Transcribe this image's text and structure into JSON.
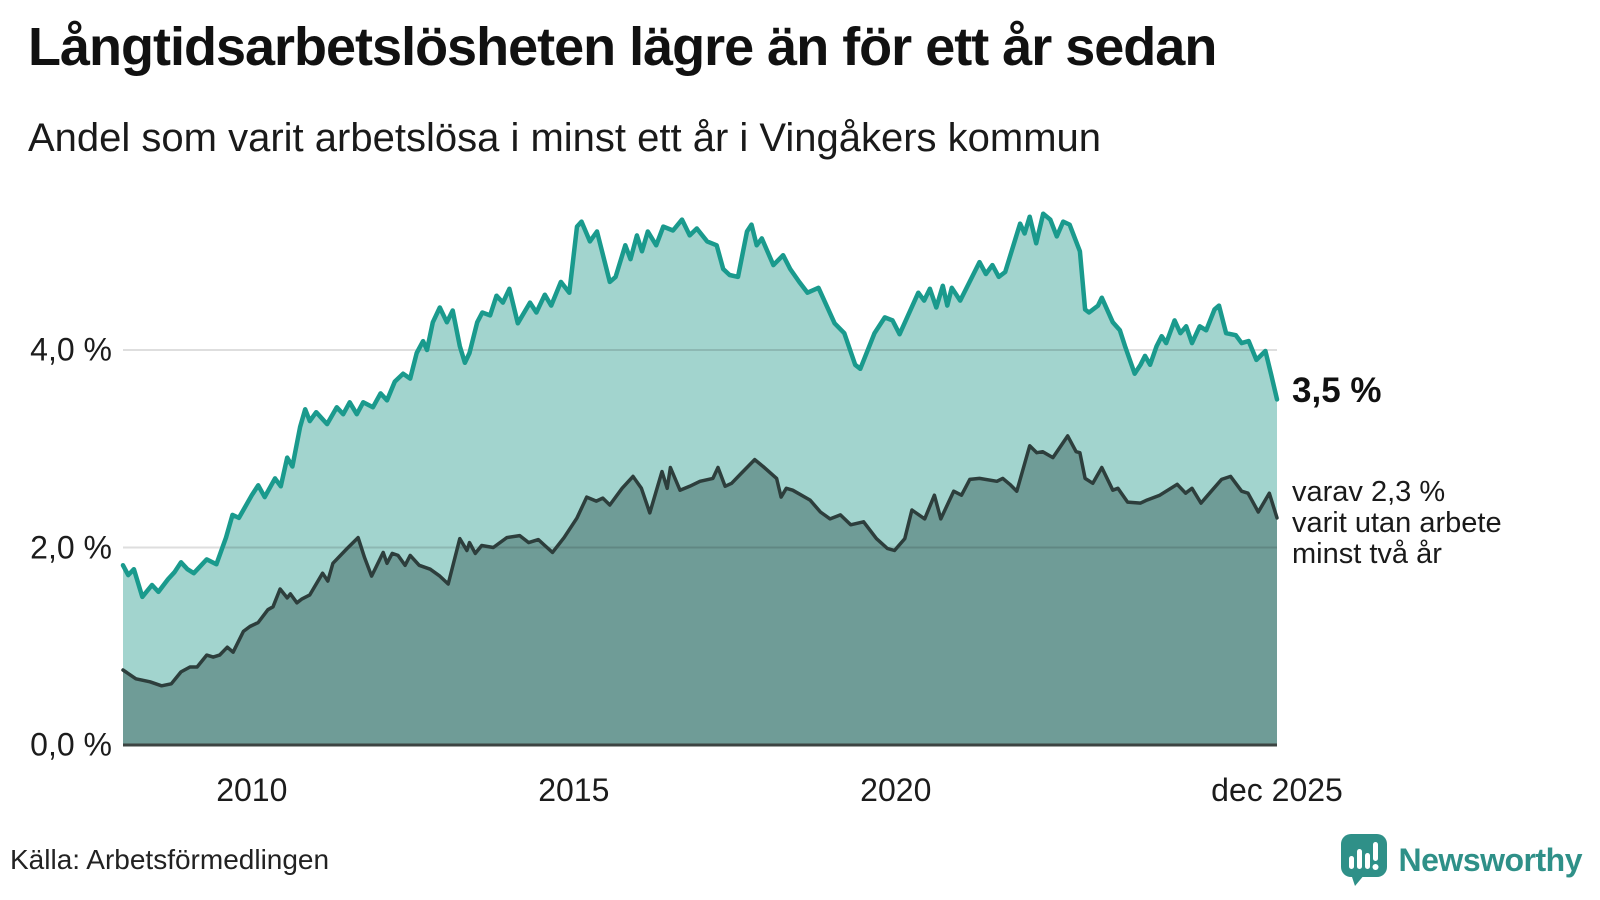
{
  "header": {
    "title": "Långtidsarbetslösheten lägre än för ett år sedan",
    "subtitle": "Andel som varit arbetslösa i minst ett år i Vingåkers kommun"
  },
  "annotations": {
    "latest_total": "3,5 %",
    "sub_lines": [
      "varav 2,3 %",
      "varit utan arbete",
      "minst två år"
    ]
  },
  "source": {
    "label": "Källa: Arbetsförmedlingen"
  },
  "branding": {
    "name": "Newsworthy",
    "icon": "newsworthy-speech-bubble-chart-icon",
    "color": "#2f9088"
  },
  "colors": {
    "series1_line": "#1a9a8d",
    "series1_fill": "#a2d4ce",
    "series2_line": "#2d3e3c",
    "series2_fill": "#6f9c97",
    "grid": "rgba(0,0,0,0.13)",
    "baseline": "#3c4442",
    "text": "#1a1a1a"
  },
  "chart_data": {
    "type": "area",
    "title": "Långtidsarbetslösheten lägre än för ett år sedan",
    "subtitle": "Andel som varit arbetslösa i minst ett år i Vingåkers kommun",
    "unit": "%",
    "grid": true,
    "legend_position": "right-annotations",
    "x_axis": {
      "range": [
        2008.0,
        2025.92
      ],
      "ticks": [
        {
          "value": 2010,
          "label": "2010"
        },
        {
          "value": 2015,
          "label": "2015"
        },
        {
          "value": 2020,
          "label": "2020"
        },
        {
          "value": 2025.92,
          "label": "dec 2025"
        }
      ]
    },
    "y_axis": {
      "range": [
        0,
        5.7
      ],
      "ticks": [
        {
          "value": 0,
          "label": "0,0 %"
        },
        {
          "value": 2,
          "label": "2,0 %"
        },
        {
          "value": 4,
          "label": "4,0 %"
        }
      ]
    },
    "series": [
      {
        "name": "arbetslösa minst ett år",
        "end_value": 3.5,
        "end_label": "3,5 %",
        "points": [
          [
            2008.0,
            1.82
          ],
          [
            2008.08,
            1.72
          ],
          [
            2008.17,
            1.78
          ],
          [
            2008.3,
            1.5
          ],
          [
            2008.45,
            1.62
          ],
          [
            2008.55,
            1.55
          ],
          [
            2008.7,
            1.68
          ],
          [
            2008.8,
            1.75
          ],
          [
            2008.9,
            1.85
          ],
          [
            2009.0,
            1.78
          ],
          [
            2009.1,
            1.74
          ],
          [
            2009.3,
            1.88
          ],
          [
            2009.45,
            1.83
          ],
          [
            2009.6,
            2.1
          ],
          [
            2009.7,
            2.33
          ],
          [
            2009.8,
            2.3
          ],
          [
            2010.0,
            2.53
          ],
          [
            2010.1,
            2.63
          ],
          [
            2010.2,
            2.51
          ],
          [
            2010.36,
            2.7
          ],
          [
            2010.45,
            2.62
          ],
          [
            2010.55,
            2.91
          ],
          [
            2010.63,
            2.82
          ],
          [
            2010.75,
            3.22
          ],
          [
            2010.83,
            3.4
          ],
          [
            2010.9,
            3.28
          ],
          [
            2011.0,
            3.37
          ],
          [
            2011.17,
            3.25
          ],
          [
            2011.32,
            3.42
          ],
          [
            2011.42,
            3.35
          ],
          [
            2011.52,
            3.47
          ],
          [
            2011.63,
            3.35
          ],
          [
            2011.73,
            3.47
          ],
          [
            2011.88,
            3.42
          ],
          [
            2012.0,
            3.56
          ],
          [
            2012.1,
            3.49
          ],
          [
            2012.22,
            3.68
          ],
          [
            2012.35,
            3.76
          ],
          [
            2012.46,
            3.71
          ],
          [
            2012.56,
            3.97
          ],
          [
            2012.66,
            4.09
          ],
          [
            2012.72,
            4.0
          ],
          [
            2012.81,
            4.28
          ],
          [
            2012.92,
            4.43
          ],
          [
            2013.03,
            4.28
          ],
          [
            2013.12,
            4.4
          ],
          [
            2013.23,
            4.04
          ],
          [
            2013.31,
            3.87
          ],
          [
            2013.38,
            3.97
          ],
          [
            2013.5,
            4.28
          ],
          [
            2013.58,
            4.38
          ],
          [
            2013.7,
            4.35
          ],
          [
            2013.8,
            4.55
          ],
          [
            2013.9,
            4.48
          ],
          [
            2014.0,
            4.62
          ],
          [
            2014.13,
            4.27
          ],
          [
            2014.32,
            4.48
          ],
          [
            2014.42,
            4.38
          ],
          [
            2014.55,
            4.56
          ],
          [
            2014.65,
            4.45
          ],
          [
            2014.8,
            4.69
          ],
          [
            2014.93,
            4.58
          ],
          [
            2015.05,
            5.25
          ],
          [
            2015.12,
            5.3
          ],
          [
            2015.25,
            5.1
          ],
          [
            2015.36,
            5.2
          ],
          [
            2015.56,
            4.69
          ],
          [
            2015.65,
            4.74
          ],
          [
            2015.8,
            5.06
          ],
          [
            2015.88,
            4.92
          ],
          [
            2015.98,
            5.16
          ],
          [
            2016.06,
            5.0
          ],
          [
            2016.15,
            5.2
          ],
          [
            2016.28,
            5.06
          ],
          [
            2016.39,
            5.25
          ],
          [
            2016.54,
            5.21
          ],
          [
            2016.68,
            5.32
          ],
          [
            2016.8,
            5.16
          ],
          [
            2016.91,
            5.23
          ],
          [
            2017.07,
            5.1
          ],
          [
            2017.22,
            5.06
          ],
          [
            2017.32,
            4.82
          ],
          [
            2017.42,
            4.76
          ],
          [
            2017.55,
            4.74
          ],
          [
            2017.69,
            5.2
          ],
          [
            2017.76,
            5.27
          ],
          [
            2017.84,
            5.06
          ],
          [
            2017.92,
            5.13
          ],
          [
            2018.1,
            4.86
          ],
          [
            2018.25,
            4.96
          ],
          [
            2018.36,
            4.82
          ],
          [
            2018.5,
            4.69
          ],
          [
            2018.63,
            4.58
          ],
          [
            2018.8,
            4.63
          ],
          [
            2019.05,
            4.27
          ],
          [
            2019.2,
            4.17
          ],
          [
            2019.37,
            3.85
          ],
          [
            2019.45,
            3.81
          ],
          [
            2019.67,
            4.17
          ],
          [
            2019.83,
            4.33
          ],
          [
            2019.95,
            4.3
          ],
          [
            2020.06,
            4.16
          ],
          [
            2020.35,
            4.58
          ],
          [
            2020.44,
            4.5
          ],
          [
            2020.53,
            4.62
          ],
          [
            2020.63,
            4.43
          ],
          [
            2020.73,
            4.65
          ],
          [
            2020.8,
            4.45
          ],
          [
            2020.87,
            4.63
          ],
          [
            2021.0,
            4.5
          ],
          [
            2021.3,
            4.89
          ],
          [
            2021.4,
            4.77
          ],
          [
            2021.5,
            4.86
          ],
          [
            2021.6,
            4.74
          ],
          [
            2021.7,
            4.79
          ],
          [
            2021.93,
            5.28
          ],
          [
            2022.0,
            5.18
          ],
          [
            2022.08,
            5.35
          ],
          [
            2022.18,
            5.08
          ],
          [
            2022.29,
            5.38
          ],
          [
            2022.4,
            5.32
          ],
          [
            2022.5,
            5.15
          ],
          [
            2022.6,
            5.3
          ],
          [
            2022.7,
            5.27
          ],
          [
            2022.86,
            5.0
          ],
          [
            2022.94,
            4.41
          ],
          [
            2023.0,
            4.38
          ],
          [
            2023.14,
            4.45
          ],
          [
            2023.2,
            4.53
          ],
          [
            2023.37,
            4.28
          ],
          [
            2023.48,
            4.2
          ],
          [
            2023.56,
            4.04
          ],
          [
            2023.71,
            3.76
          ],
          [
            2023.8,
            3.85
          ],
          [
            2023.87,
            3.94
          ],
          [
            2023.95,
            3.85
          ],
          [
            2024.05,
            4.04
          ],
          [
            2024.13,
            4.14
          ],
          [
            2024.2,
            4.07
          ],
          [
            2024.33,
            4.3
          ],
          [
            2024.42,
            4.17
          ],
          [
            2024.51,
            4.24
          ],
          [
            2024.6,
            4.07
          ],
          [
            2024.72,
            4.24
          ],
          [
            2024.82,
            4.2
          ],
          [
            2024.95,
            4.41
          ],
          [
            2025.02,
            4.45
          ],
          [
            2025.13,
            4.17
          ],
          [
            2025.28,
            4.15
          ],
          [
            2025.37,
            4.07
          ],
          [
            2025.48,
            4.09
          ],
          [
            2025.6,
            3.9
          ],
          [
            2025.74,
            3.99
          ],
          [
            2025.83,
            3.75
          ],
          [
            2025.92,
            3.5
          ]
        ]
      },
      {
        "name": "varit utan arbete minst två år",
        "end_value": 2.3,
        "end_label": "2,3 %",
        "points": [
          [
            2008.0,
            0.76
          ],
          [
            2008.2,
            0.67
          ],
          [
            2008.42,
            0.64
          ],
          [
            2008.6,
            0.6
          ],
          [
            2008.75,
            0.62
          ],
          [
            2008.9,
            0.74
          ],
          [
            2009.04,
            0.79
          ],
          [
            2009.15,
            0.79
          ],
          [
            2009.3,
            0.91
          ],
          [
            2009.4,
            0.89
          ],
          [
            2009.5,
            0.91
          ],
          [
            2009.62,
            0.99
          ],
          [
            2009.71,
            0.94
          ],
          [
            2009.87,
            1.15
          ],
          [
            2009.97,
            1.2
          ],
          [
            2010.1,
            1.24
          ],
          [
            2010.25,
            1.37
          ],
          [
            2010.33,
            1.4
          ],
          [
            2010.44,
            1.58
          ],
          [
            2010.55,
            1.49
          ],
          [
            2010.6,
            1.53
          ],
          [
            2010.7,
            1.44
          ],
          [
            2010.78,
            1.48
          ],
          [
            2010.9,
            1.52
          ],
          [
            2011.1,
            1.74
          ],
          [
            2011.18,
            1.66
          ],
          [
            2011.26,
            1.84
          ],
          [
            2011.48,
            1.99
          ],
          [
            2011.65,
            2.1
          ],
          [
            2011.75,
            1.9
          ],
          [
            2011.86,
            1.71
          ],
          [
            2012.04,
            1.95
          ],
          [
            2012.1,
            1.84
          ],
          [
            2012.18,
            1.94
          ],
          [
            2012.27,
            1.92
          ],
          [
            2012.38,
            1.82
          ],
          [
            2012.46,
            1.92
          ],
          [
            2012.6,
            1.82
          ],
          [
            2012.77,
            1.78
          ],
          [
            2012.92,
            1.71
          ],
          [
            2013.05,
            1.63
          ],
          [
            2013.23,
            2.09
          ],
          [
            2013.34,
            1.97
          ],
          [
            2013.38,
            2.05
          ],
          [
            2013.47,
            1.94
          ],
          [
            2013.57,
            2.02
          ],
          [
            2013.75,
            2.0
          ],
          [
            2013.96,
            2.1
          ],
          [
            2014.16,
            2.12
          ],
          [
            2014.3,
            2.05
          ],
          [
            2014.45,
            2.08
          ],
          [
            2014.55,
            2.02
          ],
          [
            2014.67,
            1.95
          ],
          [
            2014.85,
            2.1
          ],
          [
            2015.05,
            2.3
          ],
          [
            2015.2,
            2.51
          ],
          [
            2015.35,
            2.47
          ],
          [
            2015.45,
            2.5
          ],
          [
            2015.56,
            2.43
          ],
          [
            2015.75,
            2.6
          ],
          [
            2015.92,
            2.72
          ],
          [
            2016.05,
            2.6
          ],
          [
            2016.18,
            2.35
          ],
          [
            2016.37,
            2.77
          ],
          [
            2016.45,
            2.6
          ],
          [
            2016.5,
            2.81
          ],
          [
            2016.65,
            2.58
          ],
          [
            2016.8,
            2.62
          ],
          [
            2016.96,
            2.67
          ],
          [
            2017.16,
            2.7
          ],
          [
            2017.24,
            2.81
          ],
          [
            2017.35,
            2.62
          ],
          [
            2017.45,
            2.65
          ],
          [
            2017.6,
            2.75
          ],
          [
            2017.81,
            2.89
          ],
          [
            2017.94,
            2.82
          ],
          [
            2018.15,
            2.7
          ],
          [
            2018.22,
            2.51
          ],
          [
            2018.3,
            2.6
          ],
          [
            2018.4,
            2.58
          ],
          [
            2018.67,
            2.48
          ],
          [
            2018.83,
            2.36
          ],
          [
            2018.98,
            2.29
          ],
          [
            2019.14,
            2.33
          ],
          [
            2019.3,
            2.23
          ],
          [
            2019.5,
            2.26
          ],
          [
            2019.7,
            2.09
          ],
          [
            2019.87,
            1.99
          ],
          [
            2019.98,
            1.97
          ],
          [
            2020.14,
            2.09
          ],
          [
            2020.25,
            2.38
          ],
          [
            2020.45,
            2.29
          ],
          [
            2020.6,
            2.53
          ],
          [
            2020.7,
            2.29
          ],
          [
            2020.9,
            2.57
          ],
          [
            2021.02,
            2.53
          ],
          [
            2021.15,
            2.69
          ],
          [
            2021.3,
            2.7
          ],
          [
            2021.57,
            2.67
          ],
          [
            2021.66,
            2.7
          ],
          [
            2021.77,
            2.64
          ],
          [
            2021.88,
            2.57
          ],
          [
            2022.08,
            3.03
          ],
          [
            2022.19,
            2.96
          ],
          [
            2022.28,
            2.97
          ],
          [
            2022.44,
            2.91
          ],
          [
            2022.67,
            3.13
          ],
          [
            2022.8,
            2.97
          ],
          [
            2022.86,
            2.96
          ],
          [
            2022.94,
            2.7
          ],
          [
            2023.06,
            2.65
          ],
          [
            2023.2,
            2.81
          ],
          [
            2023.37,
            2.58
          ],
          [
            2023.45,
            2.6
          ],
          [
            2023.6,
            2.46
          ],
          [
            2023.8,
            2.45
          ],
          [
            2023.9,
            2.48
          ],
          [
            2024.1,
            2.53
          ],
          [
            2024.37,
            2.64
          ],
          [
            2024.5,
            2.55
          ],
          [
            2024.6,
            2.6
          ],
          [
            2024.74,
            2.45
          ],
          [
            2024.9,
            2.57
          ],
          [
            2025.06,
            2.69
          ],
          [
            2025.2,
            2.72
          ],
          [
            2025.37,
            2.57
          ],
          [
            2025.47,
            2.55
          ],
          [
            2025.63,
            2.36
          ],
          [
            2025.8,
            2.55
          ],
          [
            2025.92,
            2.3
          ]
        ]
      }
    ]
  }
}
